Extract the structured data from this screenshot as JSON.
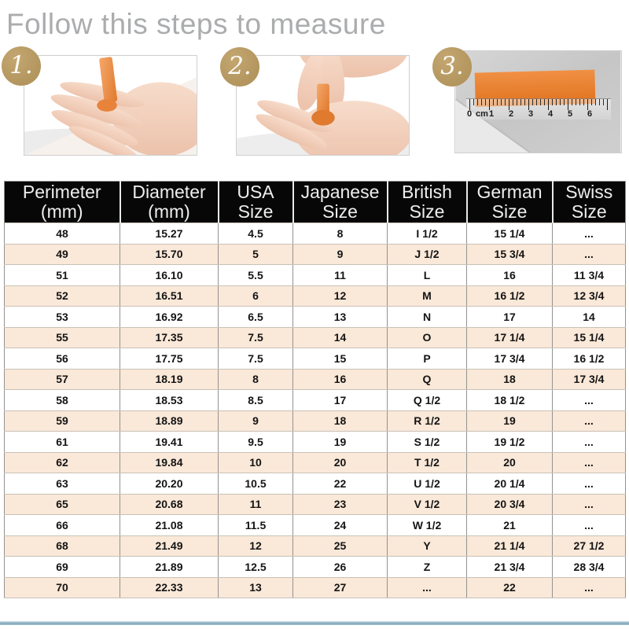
{
  "title": "Follow this steps to measure",
  "steps": [
    {
      "number": "1.",
      "photo": "strip-of-paper-around-finger"
    },
    {
      "number": "2.",
      "photo": "wrap-and-mark-the-strip"
    },
    {
      "number": "3.",
      "photo": "measure-strip-with-ruler",
      "ruler_labels": {
        "zero": "0",
        "unit": "cm",
        "n1": "1",
        "n2": "2",
        "n3": "3",
        "n4": "4",
        "n5": "5",
        "n6": "6"
      }
    }
  ],
  "table": {
    "headers": [
      {
        "line1": "Perimeter",
        "line2": "(mm)"
      },
      {
        "line1": "Diameter",
        "line2": "(mm)"
      },
      {
        "line1": "USA",
        "line2": "Size"
      },
      {
        "line1": "Japanese",
        "line2": "Size"
      },
      {
        "line1": "British",
        "line2": "Size"
      },
      {
        "line1": "German",
        "line2": "Size"
      },
      {
        "line1": "Swiss",
        "line2": "Size"
      }
    ],
    "rows": [
      [
        "48",
        "15.27",
        "4.5",
        "8",
        "I 1/2",
        "15 1/4",
        "..."
      ],
      [
        "49",
        "15.70",
        "5",
        "9",
        "J 1/2",
        "15 3/4",
        "..."
      ],
      [
        "51",
        "16.10",
        "5.5",
        "11",
        "L",
        "16",
        "11 3/4"
      ],
      [
        "52",
        "16.51",
        "6",
        "12",
        "M",
        "16 1/2",
        "12 3/4"
      ],
      [
        "53",
        "16.92",
        "6.5",
        "13",
        "N",
        "17",
        "14"
      ],
      [
        "55",
        "17.35",
        "7.5",
        "14",
        "O",
        "17 1/4",
        "15 1/4"
      ],
      [
        "56",
        "17.75",
        "7.5",
        "15",
        "P",
        "17 3/4",
        "16 1/2"
      ],
      [
        "57",
        "18.19",
        "8",
        "16",
        "Q",
        "18",
        "17 3/4"
      ],
      [
        "58",
        "18.53",
        "8.5",
        "17",
        "Q 1/2",
        "18 1/2",
        "..."
      ],
      [
        "59",
        "18.89",
        "9",
        "18",
        "R 1/2",
        "19",
        "..."
      ],
      [
        "61",
        "19.41",
        "9.5",
        "19",
        "S 1/2",
        "19 1/2",
        "..."
      ],
      [
        "62",
        "19.84",
        "10",
        "20",
        "T 1/2",
        "20",
        "..."
      ],
      [
        "63",
        "20.20",
        "10.5",
        "22",
        "U 1/2",
        "20 1/4",
        "..."
      ],
      [
        "65",
        "20.68",
        "11",
        "23",
        "V 1/2",
        "20 3/4",
        "..."
      ],
      [
        "66",
        "21.08",
        "11.5",
        "24",
        "W 1/2",
        "21",
        "..."
      ],
      [
        "68",
        "21.49",
        "12",
        "25",
        "Y",
        "21 1/4",
        "27 1/2"
      ],
      [
        "69",
        "21.89",
        "12.5",
        "26",
        "Z",
        "21 3/4",
        "28 3/4"
      ],
      [
        "70",
        "22.33",
        "13",
        "27",
        "...",
        "22",
        "..."
      ]
    ]
  },
  "colors": {
    "accent-orange": "#e8833c",
    "badge-gold": "#b3955e",
    "header-bg": "#070707",
    "row-alt": "#fae8d8",
    "title-gray": "#abacae",
    "divider-blue": "#7fa5b8"
  }
}
